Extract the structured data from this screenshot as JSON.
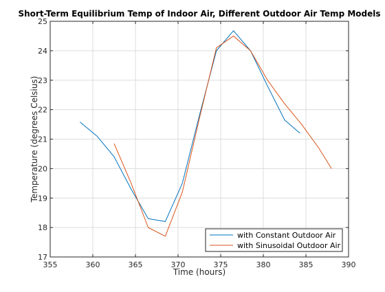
{
  "chart_data": {
    "type": "line",
    "title": "Short-Term Equilibrium Temp of Indoor Air, Different Outdoor Air Temp Models",
    "xlabel": "Time (hours)",
    "ylabel": "Temperature (degrees Celsius)",
    "xlim": [
      355,
      390
    ],
    "ylim": [
      17,
      25
    ],
    "xticks": [
      "355",
      "360",
      "365",
      "370",
      "375",
      "380",
      "385",
      "390"
    ],
    "yticks": [
      "17",
      "18",
      "19",
      "20",
      "21",
      "22",
      "23",
      "24",
      "25"
    ],
    "grid": true,
    "legend_position": "bottom-right",
    "series": [
      {
        "name": "with Constant Outdoor Air",
        "color": "#0072bd",
        "x": [
          358.5,
          360.5,
          362.5,
          364.5,
          366.5,
          368.5,
          370.5,
          372.5,
          374.5,
          376.5,
          378.5,
          380.5,
          382.5,
          384.3
        ],
        "y": [
          21.58,
          21.1,
          20.4,
          19.3,
          18.3,
          18.2,
          19.5,
          21.8,
          24.0,
          24.68,
          24.0,
          22.8,
          21.65,
          21.2
        ]
      },
      {
        "name": "with Sinusoidal Outdoor Air",
        "color": "#d95319",
        "x": [
          362.5,
          364.5,
          366.5,
          368.5,
          370.5,
          372.5,
          374.5,
          376.5,
          378.5,
          380.5,
          382.5,
          384.5,
          386.5,
          388
        ],
        "y": [
          20.85,
          19.5,
          18.0,
          17.7,
          19.2,
          21.7,
          24.1,
          24.5,
          24.0,
          23.0,
          22.2,
          21.5,
          20.7,
          20.0
        ]
      }
    ]
  }
}
